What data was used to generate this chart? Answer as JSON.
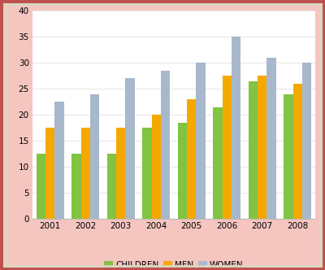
{
  "years": [
    "2001",
    "2002",
    "2003",
    "2004",
    "2005",
    "2006",
    "2007",
    "2008"
  ],
  "children": [
    12.5,
    12.5,
    12.5,
    17.5,
    18.5,
    21.5,
    26.5,
    24.0
  ],
  "men": [
    17.5,
    17.5,
    17.5,
    20.0,
    23.0,
    27.5,
    27.5,
    26.0
  ],
  "women": [
    22.5,
    24.0,
    27.0,
    28.5,
    30.0,
    35.0,
    31.0,
    30.0
  ],
  "colors": {
    "children": "#82C341",
    "men": "#F5A800",
    "women": "#A8B8CC"
  },
  "legend_labels": [
    "CHILDREN",
    "MEN",
    "WOMEN"
  ],
  "ylim": [
    0,
    40
  ],
  "yticks": [
    0,
    5,
    10,
    15,
    20,
    25,
    30,
    35,
    40
  ],
  "bar_width": 0.26,
  "plot_bg": "#FFFFFF",
  "fig_bg": "#F5C5C0",
  "outer_border": "#C0504D",
  "inner_frame": "#D8D8C0",
  "grid_color": "#E8E8E8"
}
